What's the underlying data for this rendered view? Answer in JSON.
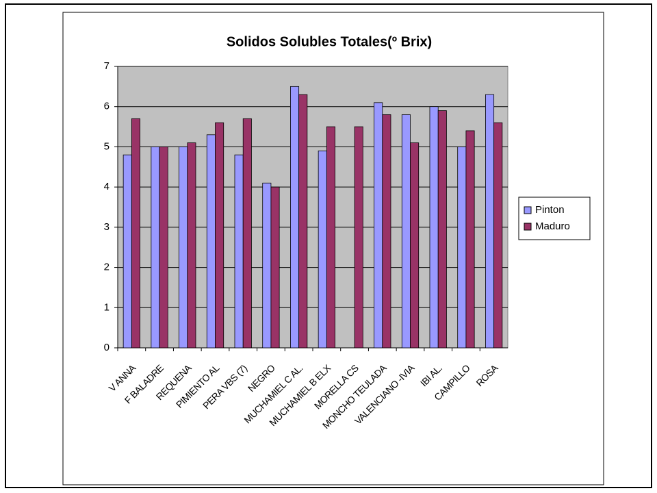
{
  "chart_data": {
    "type": "bar",
    "title": "Solidos Solubles Totales(º Brix)",
    "categories": [
      "V ANNA",
      "F BALADRE",
      "REQUENA",
      "PIMIENTO AL",
      "PERA VBS (7)",
      "NEGRO",
      "MUCHAMIEL C AL.",
      "MUCHAMIEL B ELX",
      "MORELLA CS",
      "MONCHO TEULADA",
      "VALENCIANO -IVIA",
      "IBI AL.",
      "CAMPILLO",
      "ROSA"
    ],
    "series": [
      {
        "name": "Pinton",
        "color": "#9999ff",
        "values": [
          4.8,
          5.0,
          5.0,
          5.3,
          4.8,
          4.1,
          6.5,
          4.9,
          null,
          6.1,
          5.8,
          6.0,
          5.0,
          6.3
        ]
      },
      {
        "name": "Maduro",
        "color": "#993366",
        "values": [
          5.7,
          5.0,
          5.1,
          5.6,
          5.7,
          4.0,
          6.3,
          5.5,
          5.5,
          5.8,
          5.1,
          5.9,
          5.4,
          5.6
        ]
      }
    ],
    "ylim": [
      0,
      7
    ],
    "yticks": [
      0,
      1,
      2,
      3,
      4,
      5,
      6,
      7
    ],
    "grid": true,
    "legend": "right"
  }
}
